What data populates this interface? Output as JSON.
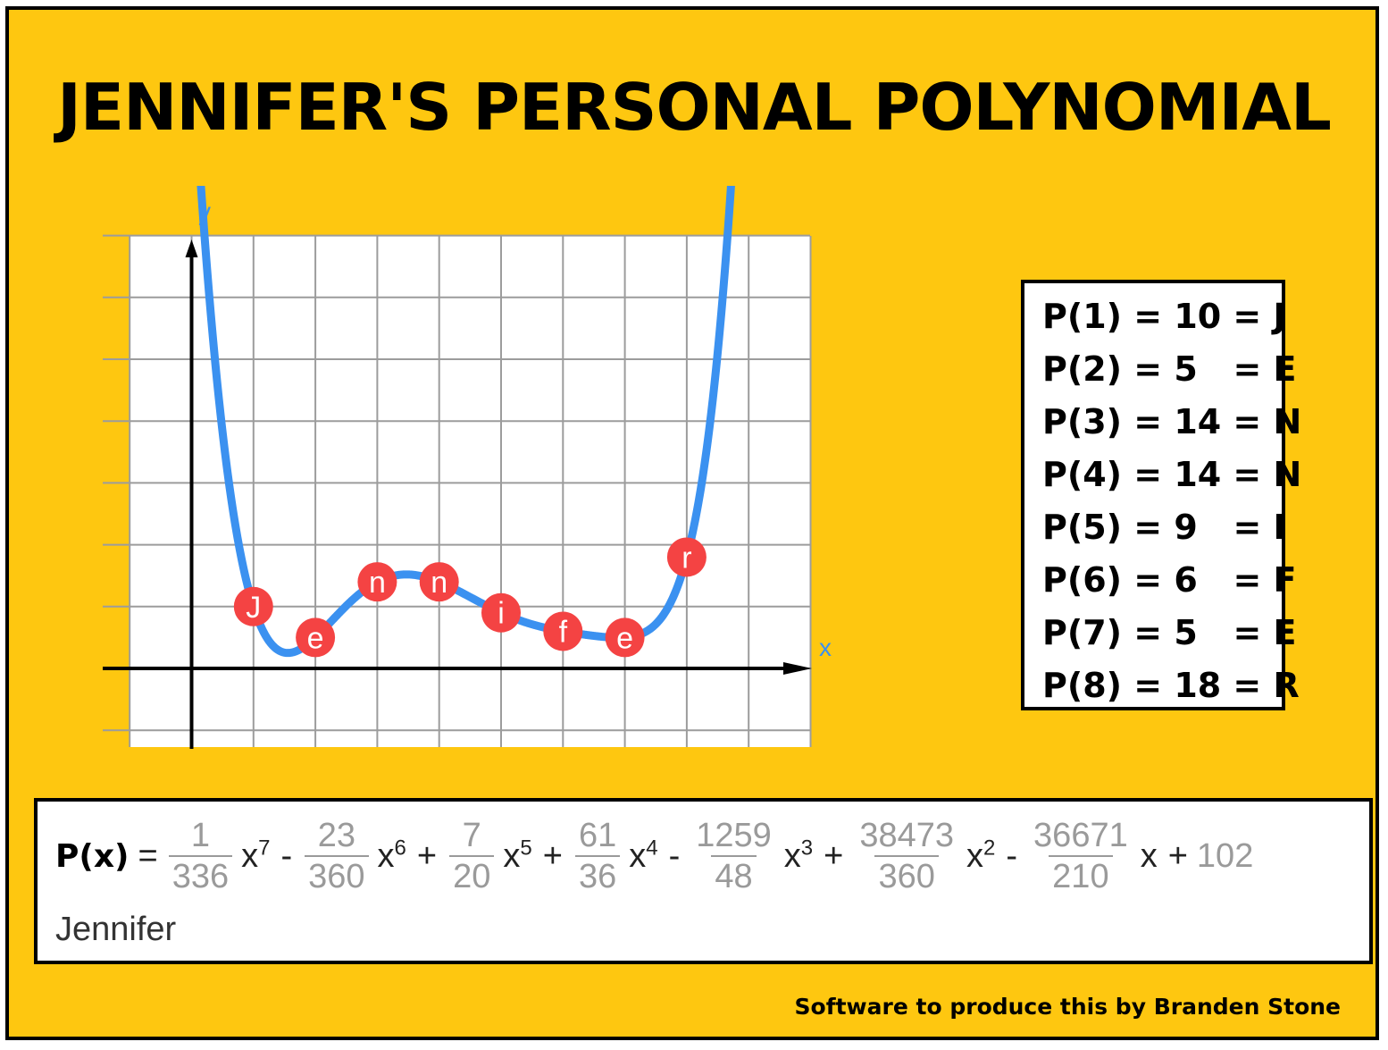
{
  "title": "JENNIFER'S PERSONAL POLYNOMIAL",
  "colors": {
    "background": "#fec710",
    "curve": "#3b91f0",
    "point": "#f44343",
    "axis_label": "#3b91f0",
    "grid": "#9c9c9c"
  },
  "chart_data": {
    "type": "line",
    "xlabel": "x",
    "ylabel": "y",
    "xlim": [
      -1,
      10
    ],
    "ylim": [
      -10,
      70
    ],
    "grid": true,
    "tick_step": 1,
    "y_tick_step": 10,
    "points": [
      {
        "x": 1,
        "y": 10,
        "label": "J"
      },
      {
        "x": 2,
        "y": 5,
        "label": "e"
      },
      {
        "x": 3,
        "y": 14,
        "label": "n"
      },
      {
        "x": 4,
        "y": 14,
        "label": "n"
      },
      {
        "x": 5,
        "y": 9,
        "label": "i"
      },
      {
        "x": 6,
        "y": 6,
        "label": "f"
      },
      {
        "x": 7,
        "y": 5,
        "label": "e"
      },
      {
        "x": 8,
        "y": 18,
        "label": "r"
      }
    ]
  },
  "values": [
    "P(1) = 10 = J",
    "P(2) = 5   = E",
    "P(3) = 14 = N",
    "P(4) = 14 = N",
    "P(5) = 9   = I",
    "P(6) = 6   = F",
    "P(7) = 5   = E",
    "P(8) = 18 = R"
  ],
  "formula": {
    "lhs": "P(x)",
    "eq": "=",
    "terms": [
      {
        "sign": "",
        "num": "1",
        "den": "336",
        "var": "x",
        "exp": "7"
      },
      {
        "sign": "-",
        "num": "23",
        "den": "360",
        "var": "x",
        "exp": "6"
      },
      {
        "sign": "+",
        "num": "7",
        "den": "20",
        "var": "x",
        "exp": "5"
      },
      {
        "sign": "+",
        "num": "61",
        "den": "36",
        "var": "x",
        "exp": "4"
      },
      {
        "sign": "-",
        "num": "1259",
        "den": "48",
        "var": "x",
        "exp": "3"
      },
      {
        "sign": "+",
        "num": "38473",
        "den": "360",
        "var": "x",
        "exp": "2"
      },
      {
        "sign": "-",
        "num": "36671",
        "den": "210",
        "var": "x",
        "exp": ""
      }
    ],
    "constant_sign": "+",
    "constant": "102",
    "name": "Jennifer"
  },
  "credit": "Software to produce this by Branden Stone"
}
